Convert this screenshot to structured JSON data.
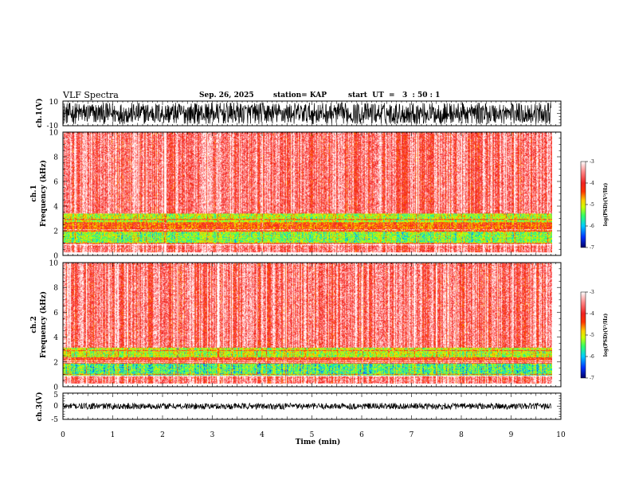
{
  "header": {
    "title": "VLF Spectra",
    "date": "Sep. 26, 2025",
    "station": "station= KAP",
    "start_ut": "start  UT  =   3  : 50 : 1"
  },
  "palette": [
    "#000066",
    "#0033ff",
    "#00ccff",
    "#33ff66",
    "#ccff00",
    "#ffcc00",
    "#ff4400",
    "#ee2222",
    "#ff6666",
    "#ffcccc",
    "#ffffff"
  ],
  "chart_data": [
    {
      "id": "ch1-waveform",
      "type": "line",
      "ylabel": "ch.1(V)",
      "ylim": [
        -10,
        10
      ],
      "yticks": [
        "10",
        "-10"
      ],
      "xlim": [
        0,
        10
      ],
      "data_extent_min": 9.8,
      "description_of_signal": "dense noise",
      "amplitude_range": [
        -10,
        10
      ]
    },
    {
      "id": "ch1-spectrogram",
      "type": "heatmap",
      "ylabel_channel": "ch.1",
      "ylabel": "Frequency  (kHz)",
      "ylim": [
        0,
        10
      ],
      "yticks": [
        "10",
        "8",
        "6",
        "4",
        "2",
        "0"
      ],
      "xlim": [
        0,
        10
      ],
      "data_extent_min": 9.8,
      "bands_khz": [
        {
          "from": 0.0,
          "to": 0.3,
          "level": 1
        },
        {
          "from": 0.3,
          "to": 1.0,
          "level": 0.8
        },
        {
          "from": 1.0,
          "to": 2.0,
          "level": 0.35
        },
        {
          "from": 2.0,
          "to": 2.7,
          "level": 0.6
        },
        {
          "from": 2.7,
          "to": 3.4,
          "level": 0.4
        },
        {
          "from": 3.4,
          "to": 10.0,
          "level": 0.8
        }
      ],
      "colorbar": {
        "title": "log(PSD)(V²/Hz)",
        "range": [
          -7,
          -3
        ],
        "ticks": [
          "-3",
          "-4",
          "-5",
          "-6",
          "-7"
        ]
      }
    },
    {
      "id": "ch2-spectrogram",
      "type": "heatmap",
      "ylabel_channel": "ch.2",
      "ylabel": "Frequency  (kHz)",
      "ylim": [
        0,
        10
      ],
      "yticks": [
        "10",
        "8",
        "6",
        "4",
        "2",
        "0"
      ],
      "xlim": [
        0,
        10
      ],
      "data_extent_min": 9.8,
      "bands_khz": [
        {
          "from": 0.0,
          "to": 0.3,
          "level": 1
        },
        {
          "from": 0.3,
          "to": 0.9,
          "level": 0.8
        },
        {
          "from": 0.9,
          "to": 1.9,
          "level": 0.3
        },
        {
          "from": 1.9,
          "to": 2.4,
          "level": 0.65
        },
        {
          "from": 2.4,
          "to": 3.2,
          "level": 0.4
        },
        {
          "from": 3.2,
          "to": 10.0,
          "level": 0.8
        }
      ],
      "colorbar": {
        "title": "log(PSD)(V²/Hz)",
        "range": [
          -7,
          -3
        ],
        "ticks": [
          "-3",
          "-4",
          "-5",
          "-6",
          "-7"
        ]
      }
    },
    {
      "id": "ch3-waveform",
      "type": "line",
      "ylabel": "ch.3(V)",
      "ylim": [
        -5,
        5
      ],
      "yticks": [
        "5",
        "0",
        "-5"
      ],
      "xlim": [
        0,
        10
      ],
      "data_extent_min": 9.8,
      "amplitude_range": [
        -1.2,
        1.2
      ]
    }
  ],
  "time_axis": {
    "label": "Time  (min)",
    "ticks": [
      "0",
      "1",
      "2",
      "3",
      "4",
      "5",
      "6",
      "7",
      "8",
      "9",
      "10"
    ]
  }
}
